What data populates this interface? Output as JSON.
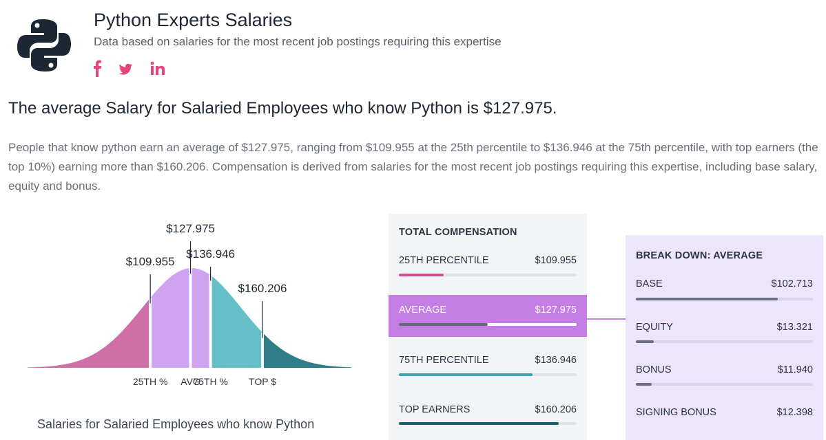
{
  "header": {
    "title": "Python Experts Salaries",
    "subtitle": "Data based on salaries for the most recent job postings requiring this expertise",
    "social": [
      {
        "icon": "facebook-icon",
        "glyph": "f"
      },
      {
        "icon": "twitter-icon",
        "glyph": "twitter"
      },
      {
        "icon": "linkedin-icon",
        "glyph": "in"
      }
    ],
    "social_color": "#e8457a"
  },
  "headline": "The average Salary for Salaried Employees who know Python is $127.975.",
  "description": "People that know python earn an average of $127.975, ranging from $109.955 at the 25th percentile to $136.946 at the 75th percentile, with top earners (the top 10%) earning more than $160.206. Compensation is derived from salaries for the most recent job postings requiring this expertise, including base salary, equity and bonus.",
  "chart_data": {
    "type": "area",
    "title": "",
    "caption": "Salaries for Salaried Employees who know Python",
    "markers": [
      {
        "label": "$109.955",
        "tick": "25TH %",
        "value": 109955,
        "color": "#cf6fa8"
      },
      {
        "label": "$127.975",
        "tick": "AVG",
        "value": 127975,
        "color": "#cfa3f0"
      },
      {
        "label": "$136.946",
        "tick": "75TH %",
        "value": 136946,
        "color": "#cfa3f0"
      },
      {
        "label": "$160.206",
        "tick": "TOP $",
        "value": 160206,
        "color": "#66bfc8"
      }
    ],
    "tail_color": "#2f7d86"
  },
  "total": {
    "title": "TOTAL COMPENSATION",
    "rows": [
      {
        "label": "25TH PERCENTILE",
        "value": "$109.955",
        "fraction": 0.25,
        "color": "#cf4f92"
      },
      {
        "label": "AVERAGE",
        "value": "$127.975",
        "fraction": 0.5,
        "color": "#5f6b7c"
      },
      {
        "label": "75TH PERCENTILE",
        "value": "$136.946",
        "fraction": 0.75,
        "color": "#3aa6ad"
      },
      {
        "label": "TOP EARNERS",
        "value": "$160.206",
        "fraction": 0.9,
        "color": "#16606a"
      }
    ]
  },
  "breakdown": {
    "title": "BREAK DOWN: AVERAGE",
    "rows": [
      {
        "label": "BASE",
        "value": "$102.713",
        "fraction": 0.8
      },
      {
        "label": "EQUITY",
        "value": "$13.321",
        "fraction": 0.1
      },
      {
        "label": "BONUS",
        "value": "$11.940",
        "fraction": 0.09
      },
      {
        "label": "SIGNING BONUS",
        "value": "$12.398",
        "fraction": 0.0
      }
    ]
  }
}
